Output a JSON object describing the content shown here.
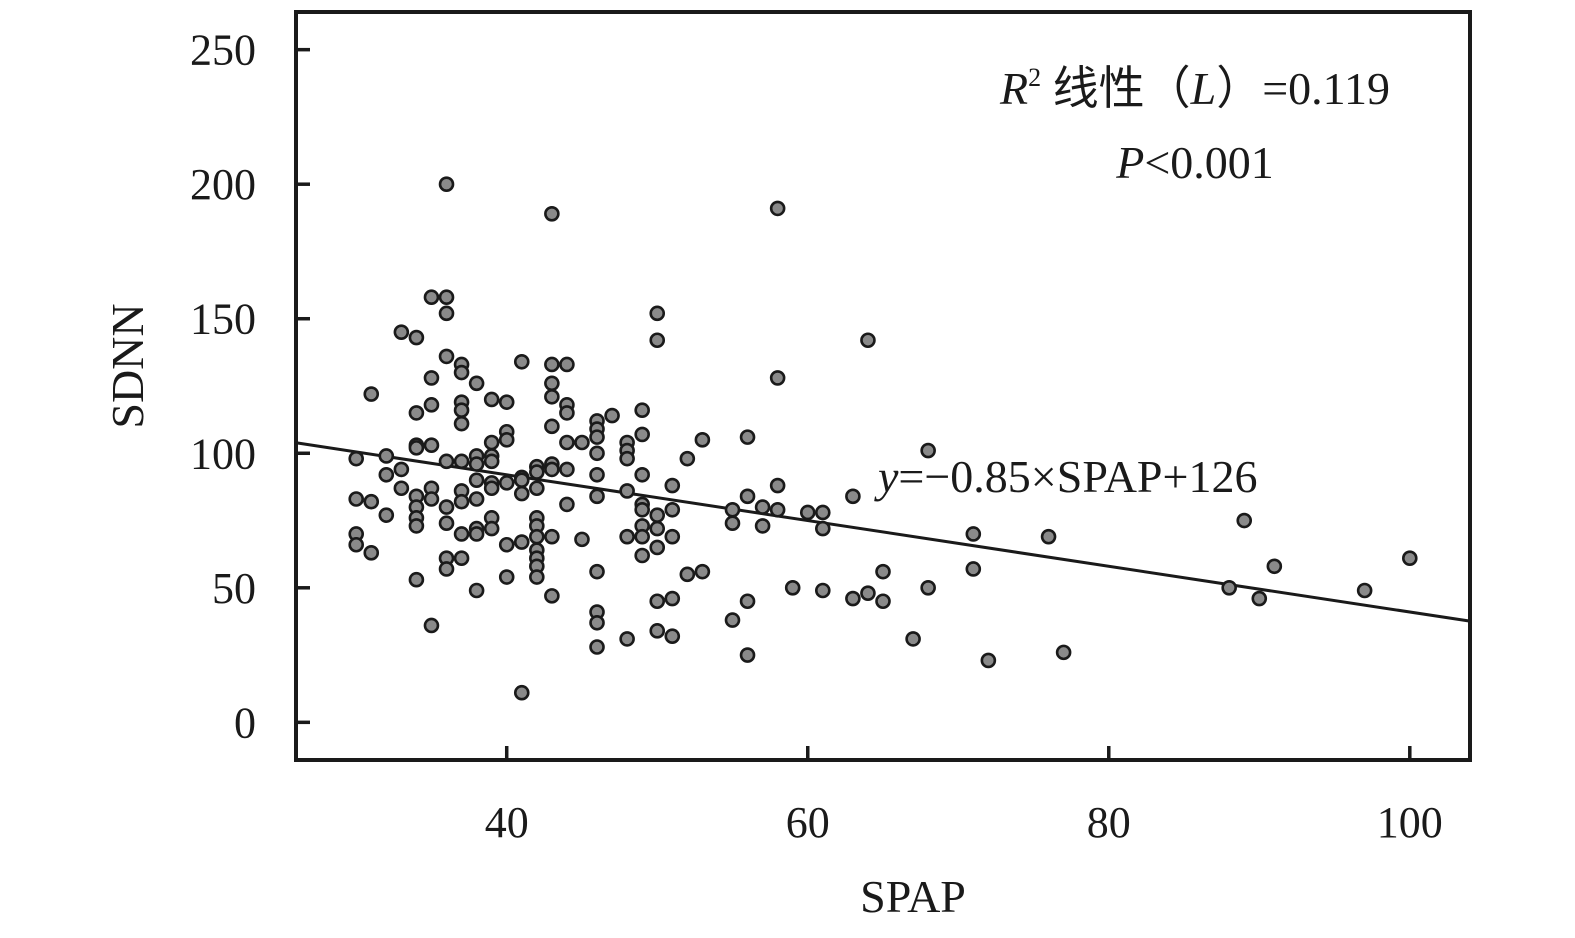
{
  "chart_data": {
    "type": "scatter",
    "xlabel": "SPAP",
    "ylabel": "SDNN",
    "xlim": [
      26,
      104
    ],
    "ylim": [
      -14,
      264
    ],
    "xticks": [
      "40",
      "60",
      "80",
      "100"
    ],
    "yticks": [
      "0",
      "50",
      "100",
      "150",
      "200",
      "250"
    ],
    "grid": false,
    "legend": "none",
    "colors": {
      "point_fill": "#8a8a8a",
      "point_stroke": "#1a1a1a",
      "line": "#1a1a1a",
      "axis": "#1a1a1a"
    },
    "annotations": {
      "r2_symbol": "R",
      "r2_sup": "2",
      "r2_text": " 线性（",
      "r2_L": "L",
      "r2_value": "）=0.119",
      "p_symbol": "P",
      "p_value": "<0.001",
      "equation_y": "y",
      "equation_text": "=−0.85×SPAP+126"
    },
    "fit": {
      "slope": -0.85,
      "intercept": 126
    },
    "points": [
      [
        30,
        98
      ],
      [
        30,
        83
      ],
      [
        30,
        70
      ],
      [
        30,
        66
      ],
      [
        31,
        122
      ],
      [
        31,
        82
      ],
      [
        31,
        63
      ],
      [
        32,
        99
      ],
      [
        32,
        92
      ],
      [
        32,
        77
      ],
      [
        33,
        145
      ],
      [
        33,
        94
      ],
      [
        33,
        87
      ],
      [
        34,
        143
      ],
      [
        34,
        115
      ],
      [
        34,
        103
      ],
      [
        34,
        102
      ],
      [
        34,
        84
      ],
      [
        34,
        80
      ],
      [
        34,
        76
      ],
      [
        34,
        73
      ],
      [
        34,
        53
      ],
      [
        35,
        158
      ],
      [
        35,
        128
      ],
      [
        35,
        118
      ],
      [
        35,
        103
      ],
      [
        35,
        87
      ],
      [
        35,
        83
      ],
      [
        35,
        36
      ],
      [
        36,
        200
      ],
      [
        36,
        158
      ],
      [
        36,
        152
      ],
      [
        36,
        136
      ],
      [
        36,
        97
      ],
      [
        36,
        80
      ],
      [
        36,
        74
      ],
      [
        36,
        61
      ],
      [
        36,
        57
      ],
      [
        37,
        133
      ],
      [
        37,
        130
      ],
      [
        37,
        119
      ],
      [
        37,
        116
      ],
      [
        37,
        111
      ],
      [
        37,
        97
      ],
      [
        37,
        86
      ],
      [
        37,
        82
      ],
      [
        37,
        70
      ],
      [
        37,
        61
      ],
      [
        38,
        126
      ],
      [
        38,
        99
      ],
      [
        38,
        96
      ],
      [
        38,
        90
      ],
      [
        38,
        83
      ],
      [
        38,
        72
      ],
      [
        38,
        70
      ],
      [
        38,
        49
      ],
      [
        39,
        120
      ],
      [
        39,
        104
      ],
      [
        39,
        99
      ],
      [
        39,
        97
      ],
      [
        39,
        89
      ],
      [
        39,
        87
      ],
      [
        39,
        76
      ],
      [
        39,
        72
      ],
      [
        40,
        119
      ],
      [
        40,
        108
      ],
      [
        40,
        105
      ],
      [
        40,
        89
      ],
      [
        40,
        66
      ],
      [
        40,
        54
      ],
      [
        41,
        134
      ],
      [
        41,
        91
      ],
      [
        41,
        90
      ],
      [
        41,
        85
      ],
      [
        41,
        67
      ],
      [
        41,
        11
      ],
      [
        42,
        95
      ],
      [
        42,
        93
      ],
      [
        42,
        87
      ],
      [
        42,
        76
      ],
      [
        42,
        73
      ],
      [
        42,
        69
      ],
      [
        42,
        64
      ],
      [
        42,
        61
      ],
      [
        42,
        58
      ],
      [
        42,
        54
      ],
      [
        43,
        189
      ],
      [
        43,
        133
      ],
      [
        43,
        126
      ],
      [
        43,
        121
      ],
      [
        43,
        110
      ],
      [
        43,
        96
      ],
      [
        43,
        94
      ],
      [
        43,
        69
      ],
      [
        43,
        47
      ],
      [
        44,
        133
      ],
      [
        44,
        118
      ],
      [
        44,
        115
      ],
      [
        44,
        104
      ],
      [
        44,
        94
      ],
      [
        44,
        81
      ],
      [
        45,
        104
      ],
      [
        45,
        68
      ],
      [
        46,
        112
      ],
      [
        46,
        109
      ],
      [
        46,
        106
      ],
      [
        46,
        100
      ],
      [
        46,
        92
      ],
      [
        46,
        84
      ],
      [
        46,
        56
      ],
      [
        46,
        41
      ],
      [
        46,
        37
      ],
      [
        46,
        28
      ],
      [
        47,
        114
      ],
      [
        48,
        104
      ],
      [
        48,
        101
      ],
      [
        48,
        98
      ],
      [
        48,
        86
      ],
      [
        48,
        69
      ],
      [
        48,
        31
      ],
      [
        49,
        116
      ],
      [
        49,
        107
      ],
      [
        49,
        92
      ],
      [
        49,
        81
      ],
      [
        49,
        79
      ],
      [
        49,
        73
      ],
      [
        49,
        69
      ],
      [
        49,
        62
      ],
      [
        50,
        152
      ],
      [
        50,
        142
      ],
      [
        50,
        77
      ],
      [
        50,
        72
      ],
      [
        50,
        65
      ],
      [
        50,
        45
      ],
      [
        50,
        34
      ],
      [
        51,
        88
      ],
      [
        51,
        79
      ],
      [
        51,
        69
      ],
      [
        51,
        46
      ],
      [
        51,
        32
      ],
      [
        52,
        98
      ],
      [
        52,
        55
      ],
      [
        53,
        105
      ],
      [
        53,
        56
      ],
      [
        55,
        79
      ],
      [
        55,
        74
      ],
      [
        55,
        38
      ],
      [
        56,
        106
      ],
      [
        56,
        84
      ],
      [
        56,
        45
      ],
      [
        56,
        25
      ],
      [
        57,
        80
      ],
      [
        57,
        73
      ],
      [
        58,
        191
      ],
      [
        58,
        128
      ],
      [
        58,
        88
      ],
      [
        58,
        79
      ],
      [
        59,
        50
      ],
      [
        60,
        78
      ],
      [
        61,
        78
      ],
      [
        61,
        72
      ],
      [
        61,
        49
      ],
      [
        63,
        84
      ],
      [
        63,
        46
      ],
      [
        64,
        142
      ],
      [
        64,
        48
      ],
      [
        65,
        56
      ],
      [
        65,
        45
      ],
      [
        67,
        31
      ],
      [
        68,
        101
      ],
      [
        68,
        50
      ],
      [
        71,
        70
      ],
      [
        71,
        57
      ],
      [
        72,
        23
      ],
      [
        76,
        69
      ],
      [
        77,
        26
      ],
      [
        88,
        50
      ],
      [
        89,
        75
      ],
      [
        90,
        46
      ],
      [
        91,
        58
      ],
      [
        97,
        49
      ],
      [
        100,
        61
      ]
    ]
  }
}
